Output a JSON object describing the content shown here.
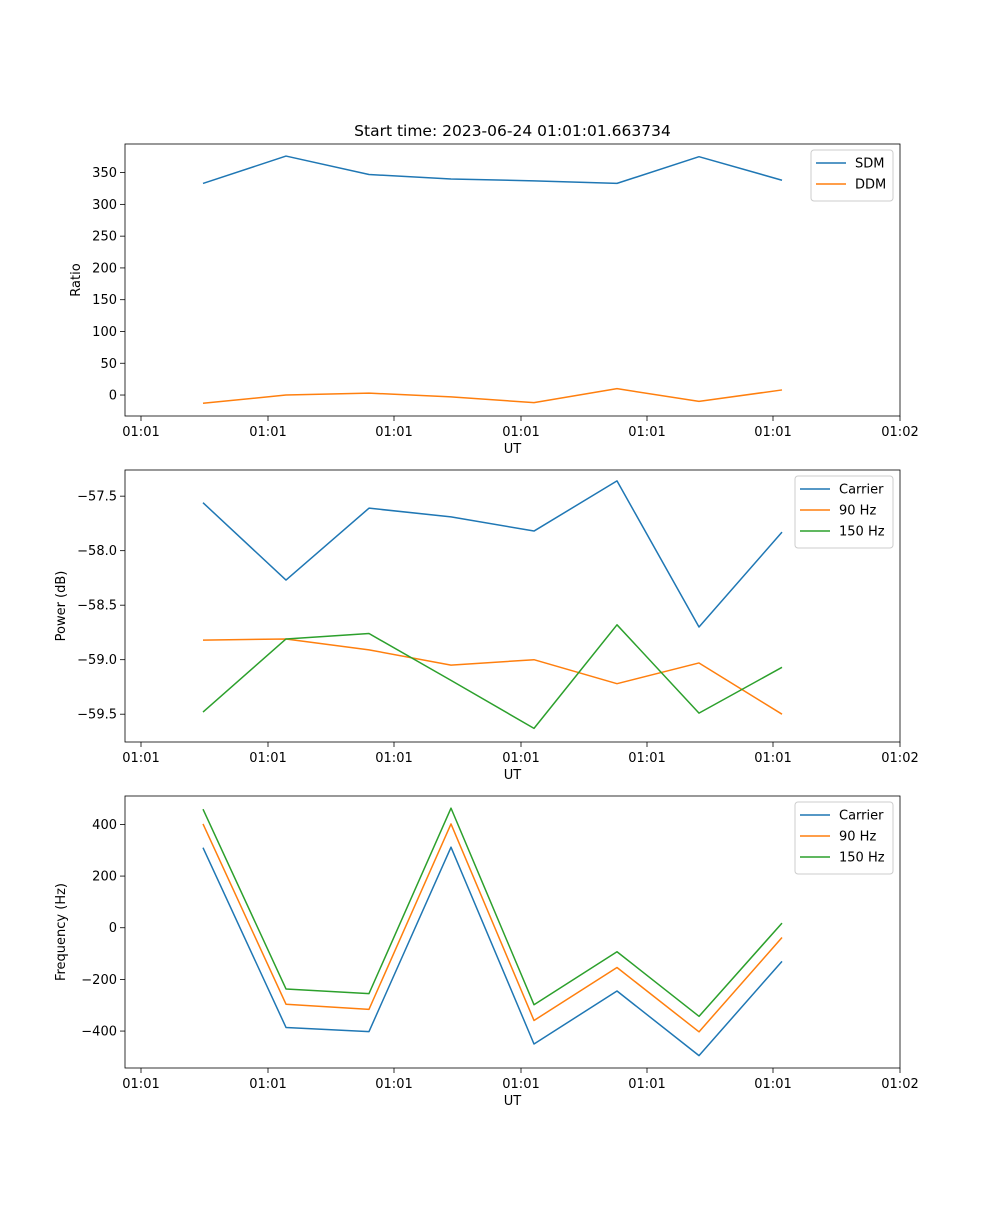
{
  "figure": {
    "title": "Start time: 2023-06-24 01:01:01.663734",
    "background": "#ffffff"
  },
  "colors": {
    "blue": "#1f77b4",
    "orange": "#ff7f0e",
    "green": "#2ca02c"
  },
  "chart_data": [
    {
      "type": "line",
      "title": "Start time: 2023-06-24 01:01:01.663734",
      "xlabel": "UT",
      "ylabel": "Ratio",
      "xtick_labels": [
        "01:01",
        "01:01",
        "01:01",
        "01:01",
        "01:01",
        "01:01",
        "01:02"
      ],
      "yticks": [
        0,
        50,
        100,
        150,
        200,
        250,
        300,
        350
      ],
      "ylim": [
        -33,
        395
      ],
      "legend": "top-right",
      "grid": false,
      "series": [
        {
          "name": "SDM",
          "color": "#1f77b4",
          "values": [
            333,
            376,
            347,
            340,
            337,
            333,
            375,
            338
          ]
        },
        {
          "name": "DDM",
          "color": "#ff7f0e",
          "values": [
            -13,
            0,
            3,
            -3,
            -12,
            10,
            -10,
            8
          ]
        }
      ]
    },
    {
      "type": "line",
      "xlabel": "UT",
      "ylabel": "Power (dB)",
      "xtick_labels": [
        "01:01",
        "01:01",
        "01:01",
        "01:01",
        "01:01",
        "01:01",
        "01:02"
      ],
      "yticks": [
        -57.5,
        -58.0,
        -58.5,
        -59.0,
        -59.5
      ],
      "ytick_labels": [
        "−57.5",
        "−58.0",
        "−58.5",
        "−59.0",
        "−59.5"
      ],
      "ylim": [
        -59.755,
        -57.26
      ],
      "legend": "top-right",
      "grid": false,
      "series": [
        {
          "name": "Carrier",
          "color": "#1f77b4",
          "values": [
            -57.56,
            -58.27,
            -57.61,
            -57.69,
            -57.82,
            -57.36,
            -58.7,
            -57.83
          ]
        },
        {
          "name": "90 Hz",
          "color": "#ff7f0e",
          "values": [
            -58.82,
            -58.81,
            -58.91,
            -59.05,
            -59.0,
            -59.22,
            -59.03,
            -59.5
          ]
        },
        {
          "name": "150 Hz",
          "color": "#2ca02c",
          "values": [
            -59.48,
            -58.81,
            -58.76,
            -59.19,
            -59.63,
            -58.68,
            -59.49,
            -59.07
          ]
        }
      ]
    },
    {
      "type": "line",
      "xlabel": "UT",
      "ylabel": "Frequency (Hz)",
      "xtick_labels": [
        "01:01",
        "01:01",
        "01:01",
        "01:01",
        "01:01",
        "01:01",
        "01:02"
      ],
      "yticks": [
        400,
        200,
        0,
        -200,
        -400
      ],
      "ytick_labels": [
        "400",
        "200",
        "0",
        "−200",
        "−400"
      ],
      "ylim": [
        -543,
        510
      ],
      "legend": "top-right",
      "grid": false,
      "series": [
        {
          "name": "Carrier",
          "color": "#1f77b4",
          "values": [
            310,
            -386,
            -402,
            312,
            -450,
            -245,
            -495,
            -130
          ]
        },
        {
          "name": "90 Hz",
          "color": "#ff7f0e",
          "values": [
            402,
            -296,
            -316,
            402,
            -359,
            -154,
            -403,
            -38
          ]
        },
        {
          "name": "150 Hz",
          "color": "#2ca02c",
          "values": [
            459,
            -237,
            -255,
            463,
            -298,
            -93,
            -343,
            18
          ]
        }
      ]
    }
  ]
}
